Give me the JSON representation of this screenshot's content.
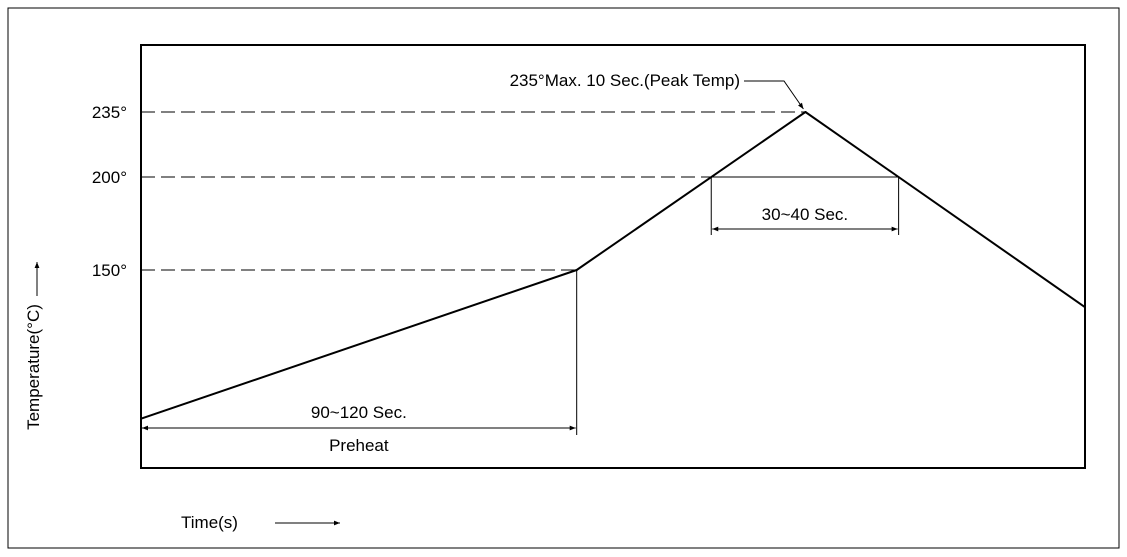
{
  "chart_data": {
    "type": "line",
    "title": "",
    "xlabel": "Time(s)",
    "ylabel": "Temperature(°C)",
    "x_axis_ticks_shown": false,
    "grid": false,
    "legend": "none",
    "y_reference_lines": [
      {
        "value": 235,
        "label": "235°"
      },
      {
        "value": 200,
        "label": "200°"
      },
      {
        "value": 150,
        "label": "150°"
      }
    ],
    "series": [
      {
        "points": [
          {
            "t": 0,
            "temp": 70
          },
          {
            "t": 120,
            "temp": 150
          },
          {
            "t": 183,
            "temp": 235
          },
          {
            "t": 260,
            "temp": 130
          }
        ]
      }
    ],
    "annotations": {
      "peak": "235°Max. 10 Sec.(Peak Temp)",
      "reflow_window": "30~40 Sec.",
      "preheat_duration": "90~120 Sec.",
      "preheat_label": "Preheat"
    }
  }
}
